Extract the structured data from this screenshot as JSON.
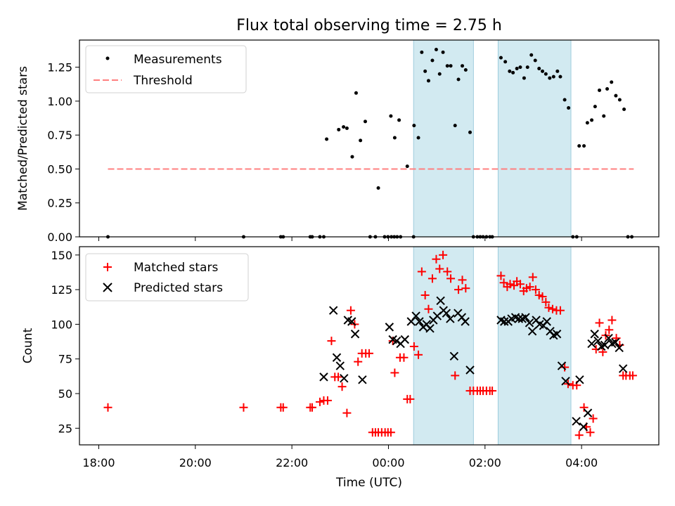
{
  "chart_data": [
    {
      "type": "scatter",
      "title": "Flux total observing time = 2.75 h",
      "xlabel": "",
      "ylabel": "Matched/Predicted stars",
      "x_unit": "hours since 18:00 UTC",
      "xlim": [
        -0.4,
        11.6
      ],
      "ylim": [
        0,
        1.45
      ],
      "yticks": [
        0.0,
        0.25,
        0.5,
        0.75,
        1.0,
        1.25
      ],
      "ytick_labels": [
        "0.00",
        "0.25",
        "0.50",
        "0.75",
        "1.00",
        "1.25"
      ],
      "shaded_intervals": [
        [
          6.52,
          7.76
        ],
        [
          8.27,
          9.78
        ]
      ],
      "shade_color": "#add8e6",
      "legend": {
        "placement": "top-left",
        "entries": [
          "Measurements",
          "Threshold"
        ]
      },
      "series": [
        {
          "name": "Measurements",
          "marker": "dot",
          "color": "#000000",
          "points": [
            [
              0.19,
              0.0
            ],
            [
              3.0,
              0.0
            ],
            [
              3.77,
              0.0
            ],
            [
              3.82,
              0.0
            ],
            [
              4.38,
              0.0
            ],
            [
              4.42,
              0.0
            ],
            [
              4.58,
              0.0
            ],
            [
              4.66,
              0.0
            ],
            [
              4.72,
              0.72
            ],
            [
              4.97,
              0.79
            ],
            [
              5.07,
              0.81
            ],
            [
              5.14,
              0.8
            ],
            [
              5.25,
              0.59
            ],
            [
              5.33,
              1.06
            ],
            [
              5.42,
              0.71
            ],
            [
              5.52,
              0.85
            ],
            [
              5.62,
              0.0
            ],
            [
              5.73,
              0.0
            ],
            [
              5.79,
              0.36
            ],
            [
              5.92,
              0.0
            ],
            [
              5.99,
              0.0
            ],
            [
              6.06,
              0.0
            ],
            [
              6.12,
              0.0
            ],
            [
              6.18,
              0.0
            ],
            [
              6.25,
              0.0
            ],
            [
              6.05,
              0.89
            ],
            [
              6.13,
              0.73
            ],
            [
              6.22,
              0.86
            ],
            [
              6.39,
              0.52
            ],
            [
              6.53,
              0.82
            ],
            [
              6.62,
              0.73
            ],
            [
              6.52,
              0.0
            ],
            [
              6.69,
              1.36
            ],
            [
              6.76,
              1.22
            ],
            [
              6.83,
              1.15
            ],
            [
              6.91,
              1.3
            ],
            [
              6.99,
              1.38
            ],
            [
              7.06,
              1.2
            ],
            [
              7.13,
              1.36
            ],
            [
              7.22,
              1.26
            ],
            [
              7.29,
              1.26
            ],
            [
              7.38,
              0.82
            ],
            [
              7.45,
              1.16
            ],
            [
              7.53,
              1.26
            ],
            [
              7.6,
              1.23
            ],
            [
              7.69,
              0.77
            ],
            [
              7.76,
              0.0
            ],
            [
              7.84,
              0.0
            ],
            [
              7.9,
              0.0
            ],
            [
              7.96,
              0.0
            ],
            [
              8.03,
              0.0
            ],
            [
              8.1,
              0.0
            ],
            [
              8.15,
              0.0
            ],
            [
              8.33,
              1.32
            ],
            [
              8.42,
              1.29
            ],
            [
              8.51,
              1.22
            ],
            [
              8.58,
              1.21
            ],
            [
              8.66,
              1.24
            ],
            [
              8.73,
              1.25
            ],
            [
              8.81,
              1.17
            ],
            [
              8.88,
              1.25
            ],
            [
              8.96,
              1.34
            ],
            [
              9.04,
              1.3
            ],
            [
              9.12,
              1.24
            ],
            [
              9.19,
              1.22
            ],
            [
              9.26,
              1.2
            ],
            [
              9.34,
              1.17
            ],
            [
              9.42,
              1.18
            ],
            [
              9.5,
              1.22
            ],
            [
              9.56,
              1.18
            ],
            [
              9.65,
              1.01
            ],
            [
              9.73,
              0.95
            ],
            [
              9.82,
              0.0
            ],
            [
              9.9,
              0.0
            ],
            [
              9.95,
              0.67
            ],
            [
              10.05,
              0.67
            ],
            [
              10.12,
              0.84
            ],
            [
              10.21,
              0.86
            ],
            [
              10.28,
              0.96
            ],
            [
              10.37,
              1.08
            ],
            [
              10.46,
              0.89
            ],
            [
              10.53,
              1.09
            ],
            [
              10.62,
              1.14
            ],
            [
              10.71,
              1.04
            ],
            [
              10.79,
              1.01
            ],
            [
              10.88,
              0.94
            ],
            [
              10.96,
              0.0
            ],
            [
              11.04,
              0.0
            ]
          ]
        },
        {
          "name": "Threshold",
          "style": "dashed",
          "color": "#ff7f7f",
          "x": [
            0.19,
            11.08
          ],
          "y": [
            0.5,
            0.5
          ]
        }
      ]
    },
    {
      "type": "scatter",
      "title": "",
      "xlabel": "Time (UTC)",
      "ylabel": "Count",
      "x_unit": "hours since 18:00 UTC",
      "xlim": [
        -0.4,
        11.6
      ],
      "ylim": [
        13,
        156
      ],
      "yticks": [
        25,
        50,
        75,
        100,
        125,
        150
      ],
      "ytick_labels": [
        "25",
        "50",
        "75",
        "100",
        "125",
        "150"
      ],
      "xticks": [
        0,
        2,
        4,
        6,
        8,
        10
      ],
      "xtick_labels": [
        "18:00",
        "20:00",
        "22:00",
        "00:00",
        "02:00",
        "04:00"
      ],
      "shaded_intervals": [
        [
          6.52,
          7.76
        ],
        [
          8.27,
          9.78
        ]
      ],
      "shade_color": "#add8e6",
      "legend": {
        "placement": "top-left",
        "entries": [
          "Matched stars",
          "Predicted stars"
        ]
      },
      "series": [
        {
          "name": "Matched stars",
          "marker": "plus",
          "color": "#ff0000",
          "points": [
            [
              0.19,
              40
            ],
            [
              3.0,
              40
            ],
            [
              3.77,
              40
            ],
            [
              3.82,
              40
            ],
            [
              4.38,
              40
            ],
            [
              4.42,
              40
            ],
            [
              4.58,
              44
            ],
            [
              4.66,
              45
            ],
            [
              4.74,
              45
            ],
            [
              4.82,
              88
            ],
            [
              4.89,
              62
            ],
            [
              4.96,
              62
            ],
            [
              5.04,
              55
            ],
            [
              5.14,
              36
            ],
            [
              5.22,
              110
            ],
            [
              5.3,
              100
            ],
            [
              5.37,
              73
            ],
            [
              5.45,
              79
            ],
            [
              5.53,
              79
            ],
            [
              5.6,
              79
            ],
            [
              5.67,
              22
            ],
            [
              5.73,
              22
            ],
            [
              5.79,
              22
            ],
            [
              5.86,
              22
            ],
            [
              5.93,
              22
            ],
            [
              5.99,
              22
            ],
            [
              6.05,
              22
            ],
            [
              6.09,
              88
            ],
            [
              6.13,
              65
            ],
            [
              6.24,
              76
            ],
            [
              6.32,
              76
            ],
            [
              6.39,
              46
            ],
            [
              6.45,
              46
            ],
            [
              6.53,
              84
            ],
            [
              6.62,
              78
            ],
            [
              6.69,
              138
            ],
            [
              6.76,
              121
            ],
            [
              6.83,
              111
            ],
            [
              6.91,
              133
            ],
            [
              6.99,
              147
            ],
            [
              7.06,
              140
            ],
            [
              7.13,
              150
            ],
            [
              7.22,
              138
            ],
            [
              7.29,
              133
            ],
            [
              7.38,
              63
            ],
            [
              7.45,
              125
            ],
            [
              7.53,
              132
            ],
            [
              7.6,
              126
            ],
            [
              7.69,
              52
            ],
            [
              7.76,
              52
            ],
            [
              7.84,
              52
            ],
            [
              7.9,
              52
            ],
            [
              7.96,
              52
            ],
            [
              8.03,
              52
            ],
            [
              8.1,
              52
            ],
            [
              8.15,
              52
            ],
            [
              8.33,
              135
            ],
            [
              8.39,
              130
            ],
            [
              8.46,
              127
            ],
            [
              8.52,
              129
            ],
            [
              8.6,
              128
            ],
            [
              8.66,
              131
            ],
            [
              8.73,
              129
            ],
            [
              8.8,
              124
            ],
            [
              8.86,
              126
            ],
            [
              8.93,
              127
            ],
            [
              8.99,
              134
            ],
            [
              9.05,
              125
            ],
            [
              9.12,
              121
            ],
            [
              9.19,
              120
            ],
            [
              9.26,
              116
            ],
            [
              9.32,
              112
            ],
            [
              9.4,
              111
            ],
            [
              9.48,
              110
            ],
            [
              9.56,
              110
            ],
            [
              9.65,
              69
            ],
            [
              9.72,
              57
            ],
            [
              9.82,
              56
            ],
            [
              9.9,
              56
            ],
            [
              9.95,
              20
            ],
            [
              10.05,
              40
            ],
            [
              10.1,
              26
            ],
            [
              10.18,
              22
            ],
            [
              10.24,
              32
            ],
            [
              10.3,
              82
            ],
            [
              10.37,
              101
            ],
            [
              10.44,
              80
            ],
            [
              10.5,
              92
            ],
            [
              10.57,
              96
            ],
            [
              10.63,
              103
            ],
            [
              10.72,
              90
            ],
            [
              10.79,
              85
            ],
            [
              10.86,
              63
            ],
            [
              10.92,
              63
            ],
            [
              11.0,
              63
            ],
            [
              11.06,
              63
            ]
          ]
        },
        {
          "name": "Predicted stars",
          "marker": "x",
          "color": "#000000",
          "points": [
            [
              4.66,
              62
            ],
            [
              4.86,
              110
            ],
            [
              4.93,
              76
            ],
            [
              5.0,
              70
            ],
            [
              5.08,
              61
            ],
            [
              5.16,
              103
            ],
            [
              5.24,
              102
            ],
            [
              5.31,
              93
            ],
            [
              5.46,
              60
            ],
            [
              6.02,
              98
            ],
            [
              6.09,
              89
            ],
            [
              6.17,
              88
            ],
            [
              6.25,
              86
            ],
            [
              6.34,
              89
            ],
            [
              6.47,
              102
            ],
            [
              6.57,
              106
            ],
            [
              6.64,
              102
            ],
            [
              6.72,
              98
            ],
            [
              6.79,
              100
            ],
            [
              6.86,
              97
            ],
            [
              6.93,
              103
            ],
            [
              7.01,
              106
            ],
            [
              7.08,
              117
            ],
            [
              7.14,
              110
            ],
            [
              7.2,
              108
            ],
            [
              7.28,
              104
            ],
            [
              7.36,
              77
            ],
            [
              7.44,
              108
            ],
            [
              7.52,
              105
            ],
            [
              7.59,
              102
            ],
            [
              7.69,
              67
            ],
            [
              8.33,
              103
            ],
            [
              8.4,
              102
            ],
            [
              8.48,
              102
            ],
            [
              8.55,
              104
            ],
            [
              8.63,
              105
            ],
            [
              8.7,
              104
            ],
            [
              8.77,
              104
            ],
            [
              8.84,
              105
            ],
            [
              8.92,
              101
            ],
            [
              8.98,
              95
            ],
            [
              9.06,
              103
            ],
            [
              9.13,
              100
            ],
            [
              9.21,
              99
            ],
            [
              9.28,
              102
            ],
            [
              9.35,
              95
            ],
            [
              9.42,
              92
            ],
            [
              9.49,
              93
            ],
            [
              9.59,
              70
            ],
            [
              9.67,
              59
            ],
            [
              9.89,
              30
            ],
            [
              9.96,
              60
            ],
            [
              10.04,
              26
            ],
            [
              10.13,
              36
            ],
            [
              10.21,
              86
            ],
            [
              10.27,
              93
            ],
            [
              10.34,
              88
            ],
            [
              10.41,
              84
            ],
            [
              10.48,
              85
            ],
            [
              10.56,
              90
            ],
            [
              10.63,
              86
            ],
            [
              10.7,
              87
            ],
            [
              10.78,
              83
            ],
            [
              10.86,
              68
            ]
          ]
        }
      ]
    }
  ]
}
